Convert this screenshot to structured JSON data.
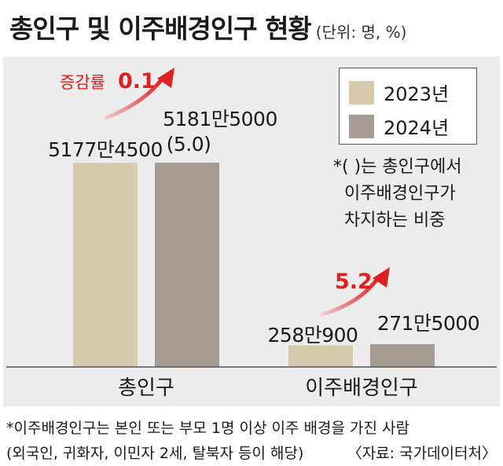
{
  "header": {
    "title": "총인구 및 이주배경인구 현황",
    "unit": "(단위: 명, %)"
  },
  "legend": {
    "items": [
      {
        "label": "2023년",
        "color": "#d9cbae"
      },
      {
        "label": "2024년",
        "color": "#a69b90"
      }
    ]
  },
  "note": {
    "lines": [
      "*(    )는 총인구에서",
      "이주배경인구가",
      "차지하는 비중"
    ]
  },
  "footnote": {
    "line1": "*이주배경인구는 본인 또는 부모 1명 이상 이주 배경을 가진 사람",
    "line2": "(외국인, 귀화자, 이민자 2세, 탈북자 등이 해당)",
    "source": "〈자료: 국가데이터처〉"
  },
  "chart_data": {
    "type": "bar",
    "categories": [
      "총인구",
      "이주배경인구"
    ],
    "series": [
      {
        "name": "2023년",
        "values": [
          51774500,
          2580900
        ],
        "labels": [
          "5177만4500",
          "258만900"
        ]
      },
      {
        "name": "2024년",
        "values": [
          51815000,
          2715000
        ],
        "labels": [
          "5181만5000",
          "271만5000"
        ]
      }
    ],
    "share_labels": [
      "(5.0)",
      ""
    ],
    "growth": [
      {
        "label": "증감률",
        "value": "0.1"
      },
      {
        "label": "",
        "value": "5.2"
      }
    ],
    "colors": {
      "accent": "#e02020",
      "bar2023": "#d9cbae",
      "bar2024": "#a69b90"
    }
  }
}
